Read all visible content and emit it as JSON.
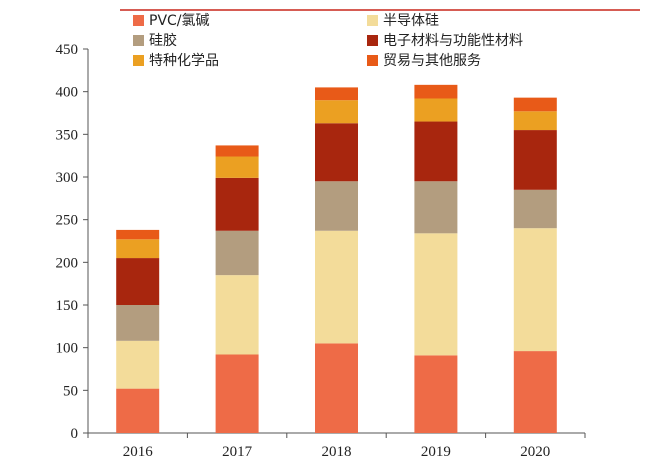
{
  "chart_data": {
    "type": "bar",
    "stacked": true,
    "categories": [
      "2016",
      "2017",
      "2018",
      "2019",
      "2020"
    ],
    "ylim": [
      0,
      450
    ],
    "yticks": [
      0,
      50,
      100,
      150,
      200,
      250,
      300,
      350,
      400,
      450
    ],
    "grid": false,
    "legend": "top",
    "series": [
      {
        "name": "PVC/氯碱",
        "color": "#EE6B47",
        "values": [
          52,
          92,
          105,
          91,
          96
        ]
      },
      {
        "name": "半导体硅",
        "color": "#F3DC9A",
        "values": [
          56,
          93,
          132,
          143,
          144
        ]
      },
      {
        "name": "硅胶",
        "color": "#B39D7F",
        "values": [
          42,
          52,
          58,
          61,
          45
        ]
      },
      {
        "name": "电子材料与功能性材料",
        "color": "#A8260E",
        "values": [
          55,
          62,
          68,
          70,
          70
        ]
      },
      {
        "name": "特种化学品",
        "color": "#EBA022",
        "values": [
          22,
          25,
          27,
          27,
          22
        ]
      },
      {
        "name": "贸易与其他服务",
        "color": "#E85A18",
        "values": [
          11,
          13,
          15,
          16,
          16
        ]
      }
    ]
  },
  "colors": {
    "accent_line": "#C9261B",
    "axis": "#555555"
  }
}
